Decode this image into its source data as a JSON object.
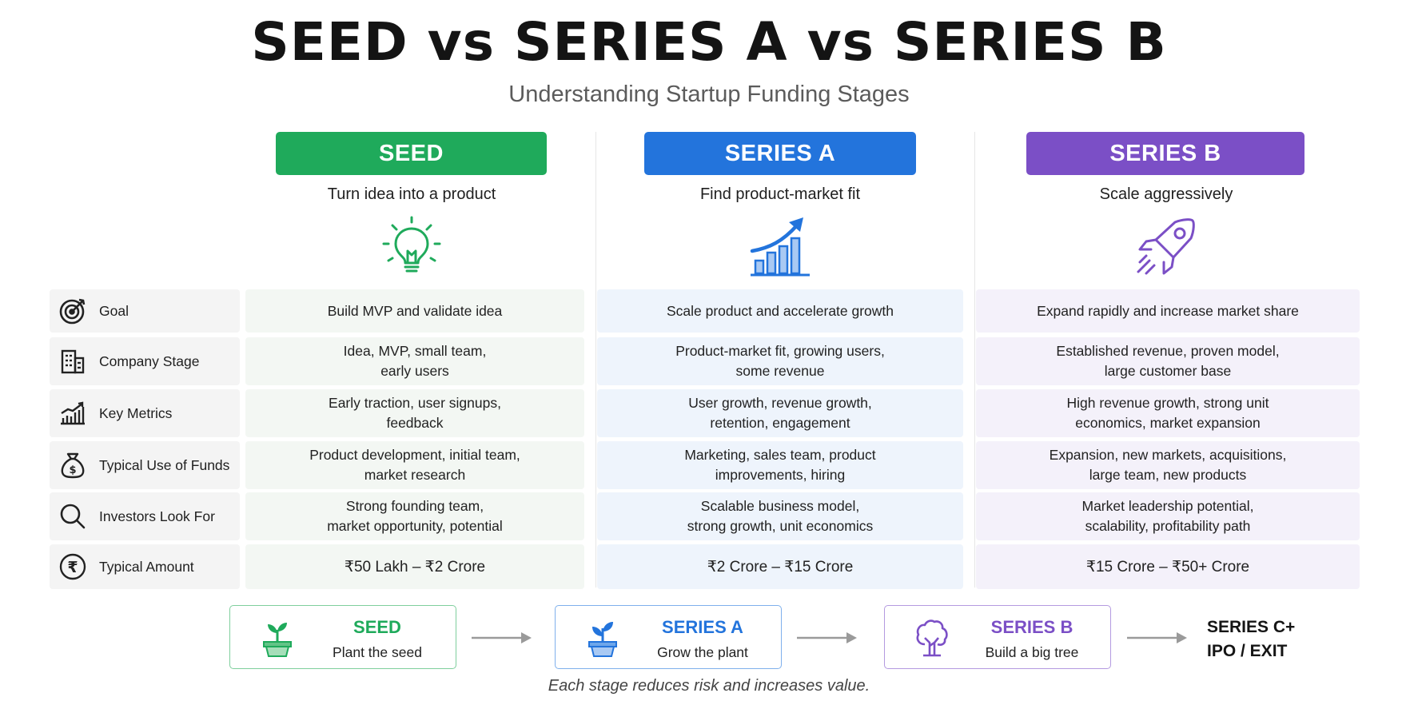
{
  "title": "SEED vs SERIES A vs SERIES B",
  "subtitle": "Understanding Startup Funding Stages",
  "colors": {
    "seed": "#1faa5b",
    "series_a": "#2374dc",
    "series_b": "#7b4fc6"
  },
  "stages": [
    {
      "name": "SEED",
      "tagline": "Turn idea into a product",
      "icon": "lightbulb-icon"
    },
    {
      "name": "SERIES A",
      "tagline": "Find product-market fit",
      "icon": "growth-chart-icon"
    },
    {
      "name": "SERIES B",
      "tagline": "Scale aggressively",
      "icon": "rocket-icon"
    }
  ],
  "rows": [
    {
      "label": "Goal",
      "icon": "target-icon",
      "seed": "Build MVP and validate idea",
      "series_a": "Scale product and accelerate growth",
      "series_b": "Expand rapidly and increase market share"
    },
    {
      "label": "Company Stage",
      "icon": "building-icon",
      "seed": "Idea, MVP, small team,\nearly users",
      "series_a": "Product-market fit, growing users,\nsome revenue",
      "series_b": "Established revenue, proven model,\nlarge customer base"
    },
    {
      "label": "Key Metrics",
      "icon": "metrics-chart-icon",
      "seed": "Early traction, user signups,\nfeedback",
      "series_a": "User growth, revenue growth,\nretention, engagement",
      "series_b": "High revenue growth, strong unit\neconomics, market expansion"
    },
    {
      "label": "Typical Use of Funds",
      "icon": "money-bag-icon",
      "seed": "Product development, initial team,\nmarket research",
      "series_a": "Marketing, sales team, product\nimprovements, hiring",
      "series_b": "Expansion, new markets, acquisitions,\nlarge team, new products"
    },
    {
      "label": "Investors Look For",
      "icon": "magnifier-icon",
      "seed": "Strong founding team,\nmarket opportunity, potential",
      "series_a": "Scalable business model,\nstrong growth, unit economics",
      "series_b": "Market leadership potential,\nscalability, profitability path"
    },
    {
      "label": "Typical Amount",
      "icon": "rupee-icon",
      "seed": "₹50 Lakh – ₹2 Crore",
      "series_a": "₹2 Crore – ₹15 Crore",
      "series_b": "₹15 Crore – ₹50+ Crore"
    }
  ],
  "flow": [
    {
      "name": "SEED",
      "desc": "Plant the seed",
      "icon": "seedling-pot-icon"
    },
    {
      "name": "SERIES A",
      "desc": "Grow the plant",
      "icon": "plant-pot-icon"
    },
    {
      "name": "SERIES B",
      "desc": "Build a big tree",
      "icon": "tree-icon"
    }
  ],
  "final_stage": {
    "line1": "SERIES C+",
    "line2": "IPO / EXIT"
  },
  "footnote": "Each stage reduces risk and increases value."
}
